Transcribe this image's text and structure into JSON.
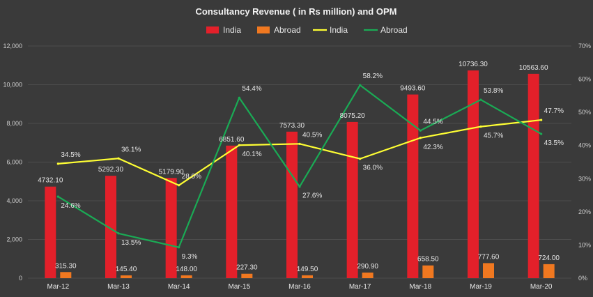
{
  "chart_data": {
    "type": "bar",
    "title": "Consultancy Revenue ( in Rs million) and OPM",
    "categories": [
      "Mar-12",
      "Mar-13",
      "Mar-14",
      "Mar-15",
      "Mar-16",
      "Mar-17",
      "Mar-18",
      "Mar-19",
      "Mar-20"
    ],
    "legend": [
      "India",
      "Abroad",
      "India",
      "Abroad"
    ],
    "series": [
      {
        "name": "India",
        "kind": "bar",
        "axis": "left",
        "color": "#e3202a",
        "values": [
          4732.1,
          5292.3,
          5179.9,
          6851.6,
          7573.3,
          8075.2,
          9493.6,
          10736.3,
          10563.6
        ],
        "labels": [
          "4732.10",
          "5292.30",
          "5179.90",
          "6851.60",
          "7573.30",
          "8075.20",
          "9493.60",
          "10736.30",
          "10563.60"
        ]
      },
      {
        "name": "Abroad",
        "kind": "bar",
        "axis": "left",
        "color": "#f07820",
        "values": [
          315.3,
          145.4,
          148.0,
          227.3,
          149.5,
          290.9,
          658.5,
          777.6,
          724.0
        ],
        "labels": [
          "315.30",
          "145.40",
          "148.00",
          "227.30",
          "149.50",
          "290.90",
          "658.50",
          "777.60",
          "724.00"
        ]
      },
      {
        "name": "India",
        "kind": "line",
        "axis": "right",
        "color": "#ffff33",
        "values": [
          34.5,
          36.1,
          28.0,
          40.1,
          40.5,
          36.0,
          42.3,
          45.7,
          47.7
        ],
        "labels": [
          "34.5%",
          "36.1%",
          "28.0%",
          "40.1%",
          "40.5%",
          "36.0%",
          "42.3%",
          "45.7%",
          "47.7%"
        ]
      },
      {
        "name": "Abroad",
        "kind": "line",
        "axis": "right",
        "color": "#1aab55",
        "values": [
          24.6,
          13.5,
          9.3,
          54.4,
          27.6,
          58.2,
          44.5,
          53.8,
          43.5
        ],
        "labels": [
          "24.6%",
          "13.5%",
          "9.3%",
          "54.4%",
          "27.6%",
          "58.2%",
          "44.5%",
          "53.8%",
          "43.5%"
        ]
      }
    ],
    "left_axis": {
      "min": 0,
      "max": 12000,
      "ticks": [
        "0",
        "2,000",
        "4,000",
        "6,000",
        "8,000",
        "10,000",
        "12,000"
      ]
    },
    "right_axis": {
      "min": 0,
      "max": 70,
      "ticks": [
        "0%",
        "10%",
        "20%",
        "30%",
        "40%",
        "50%",
        "60%",
        "70%"
      ]
    },
    "grid": true,
    "legend_position": "top"
  }
}
